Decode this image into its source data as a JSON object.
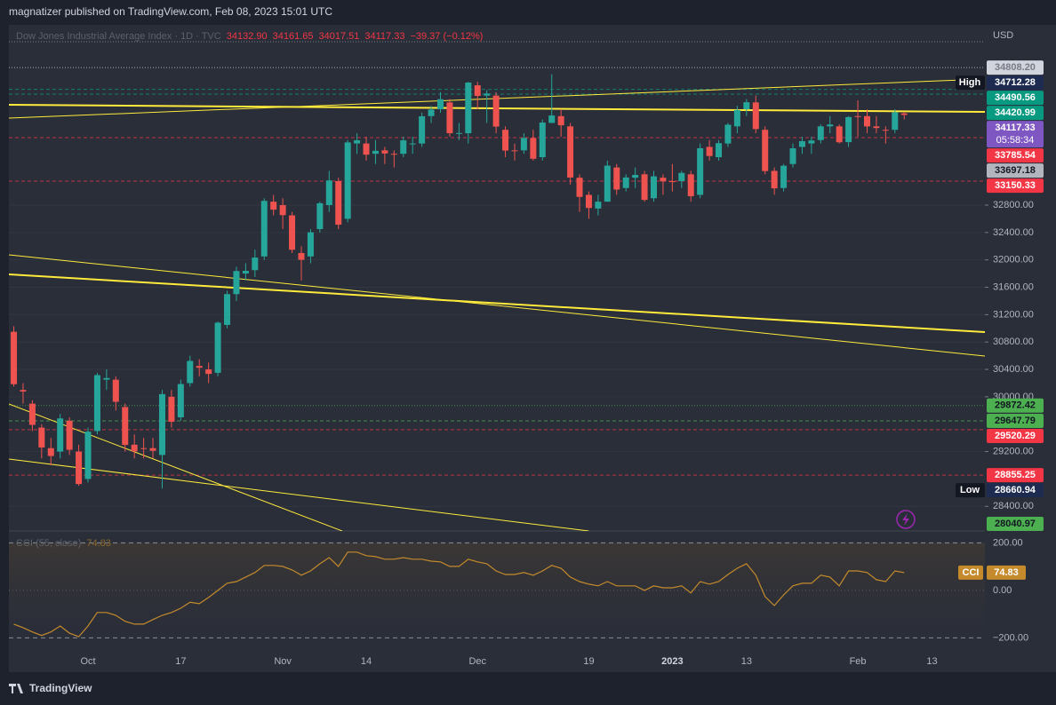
{
  "header": {
    "title": "magnatizer published on TradingView.com, Feb 08, 2023 15:01 UTC"
  },
  "footer": {
    "brand": "TradingView"
  },
  "chart_data": {
    "type": "candlestick",
    "legend": {
      "name": "Dow Jones Industrial Average Index · 1D · TVC",
      "values": [
        "34132.90",
        "34161.65",
        "34017.51",
        "34117.33",
        "−39.37 (−0.12%)"
      ]
    },
    "currency": "USD",
    "categories": [
      null,
      null,
      null,
      null,
      null,
      null,
      null,
      null,
      "Oct",
      null,
      null,
      null,
      null,
      null,
      null,
      null,
      null,
      null,
      "17",
      null,
      null,
      null,
      null,
      null,
      null,
      null,
      null,
      null,
      null,
      "Nov",
      null,
      null,
      null,
      null,
      null,
      null,
      null,
      null,
      "14",
      null,
      null,
      null,
      null,
      null,
      null,
      null,
      null,
      null,
      null,
      null,
      "Dec",
      null,
      null,
      null,
      null,
      null,
      null,
      null,
      null,
      null,
      null,
      null,
      "19",
      null,
      null,
      null,
      null,
      null,
      null,
      null,
      null,
      "2023",
      null,
      null,
      null,
      null,
      null,
      null,
      null,
      "13",
      null,
      null,
      null,
      null,
      null,
      null,
      null,
      null,
      null,
      null,
      null,
      "Feb",
      null,
      null,
      null,
      null,
      null,
      null,
      null,
      "13"
    ],
    "open": [
      30950,
      30100,
      29900,
      29550,
      29250,
      29200,
      29650,
      29200,
      28800,
      29500,
      30250,
      30250,
      29850,
      29300,
      29250,
      29250,
      29150,
      30000,
      29700,
      30200,
      30450,
      30400,
      30350,
      31050,
      31500,
      31800,
      31850,
      32050,
      32850,
      32800,
      32650,
      32100,
      32050,
      32450,
      32800,
      33150,
      32600,
      33700,
      33700,
      33550,
      33600,
      33550,
      33550,
      33700,
      33700,
      34100,
      34200,
      34300,
      33850,
      33850,
      34550,
      34400,
      34400,
      33900,
      33600,
      33600,
      33780,
      33500,
      34000,
      34100,
      33950,
      33200,
      32950,
      32750,
      32850,
      33350,
      33050,
      33200,
      33250,
      32900,
      33200,
      33150,
      33150,
      33250,
      32950,
      33650,
      33500,
      33700,
      33950,
      34200,
      34300,
      33900,
      33300,
      33050,
      33400,
      33650,
      33700,
      33750,
      33950,
      33950,
      33720,
      34100,
      34100,
      33950,
      33900,
      33900,
      34140,
      null,
      null,
      null
    ],
    "high": [
      31030,
      30200,
      29950,
      29600,
      29400,
      29750,
      29700,
      29300,
      29550,
      30350,
      30400,
      30300,
      29900,
      29450,
      29400,
      29400,
      30100,
      30100,
      30250,
      30600,
      30550,
      30500,
      31100,
      31550,
      31900,
      31950,
      32150,
      32900,
      32950,
      32900,
      32700,
      32200,
      32450,
      32850,
      33300,
      33200,
      33750,
      33850,
      33800,
      33750,
      33650,
      33600,
      33800,
      33800,
      34150,
      34250,
      34450,
      34350,
      34000,
      34600,
      34600,
      34480,
      34450,
      33950,
      33700,
      33850,
      33900,
      34050,
      34712.28,
      34200,
      34000,
      33250,
      33000,
      32950,
      33450,
      33400,
      33250,
      33350,
      33300,
      33300,
      33250,
      33400,
      33300,
      33300,
      33700,
      33750,
      33750,
      34000,
      34250,
      34350,
      34400,
      33950,
      33350,
      33400,
      33700,
      33800,
      33800,
      33980,
      34100,
      33980,
      34100,
      34330,
      34200,
      34100,
      33950,
      34200,
      34160,
      null,
      null,
      null
    ],
    "low": [
      30150,
      29900,
      29500,
      29100,
      29000,
      29100,
      29150,
      28700,
      28750,
      29450,
      30100,
      29800,
      29200,
      29100,
      29100,
      29100,
      28660.94,
      29550,
      29650,
      30150,
      30300,
      30200,
      30300,
      31000,
      31400,
      31700,
      31750,
      32000,
      32650,
      32450,
      32100,
      31700,
      31950,
      32400,
      32700,
      32450,
      32550,
      33550,
      33450,
      33400,
      33400,
      33350,
      33500,
      33550,
      33650,
      34000,
      34150,
      33800,
      33750,
      33700,
      34200,
      34000,
      33850,
      33500,
      33450,
      33550,
      33450,
      33450,
      34000,
      33800,
      33100,
      32700,
      32600,
      32650,
      32850,
      32950,
      33000,
      33050,
      32850,
      32850,
      32950,
      33000,
      33050,
      32850,
      32900,
      33450,
      33450,
      33650,
      33850,
      34100,
      33850,
      33250,
      32950,
      33000,
      33350,
      33550,
      33550,
      33700,
      33850,
      33700,
      33650,
      33800,
      33850,
      33850,
      33700,
      33850,
      34050,
      null,
      null,
      null
    ],
    "close": [
      30184,
      30077,
      29590,
      29260,
      29135,
      29684,
      29226,
      28726,
      29491,
      30317,
      30274,
      29927,
      29297,
      29203,
      29240,
      29211,
      30039,
      29635,
      30186,
      30524,
      30424,
      30334,
      31083,
      31500,
      31837,
      31840,
      32034,
      32862,
      32733,
      32654,
      32148,
      32001,
      32403,
      32827,
      33161,
      32514,
      33716,
      33748,
      33537,
      33593,
      33554,
      33546,
      33746,
      33700,
      34098,
      34195,
      34347,
      33850,
      33853,
      34590,
      34395,
      34430,
      33947,
      33597,
      33598,
      33781,
      33477,
      34006,
      34109,
      33966,
      33203,
      32920,
      32758,
      32850,
      33377,
      33027,
      33204,
      33241,
      32876,
      33220,
      33147,
      33136,
      33270,
      32930,
      33631,
      33517,
      33705,
      33974,
      34190,
      34303,
      33911,
      33297,
      33045,
      33375,
      33630,
      33734,
      33744,
      33950,
      33978,
      33718,
      34086,
      34092,
      33949,
      33926,
      33891,
      34156,
      34117.33,
      null,
      null,
      null
    ],
    "up_color": "#26a69a",
    "down_color": "#ef5350",
    "xlim": [
      -0.53,
      104.7
    ],
    "ylim": [
      28040,
      35433
    ],
    "yticks": [
      {
        "value": 28400,
        "label": "28400.00"
      },
      {
        "value": 29200,
        "label": "29200.00"
      },
      {
        "value": 30000,
        "label": "30000.00"
      },
      {
        "value": 30400,
        "label": "30400.00"
      },
      {
        "value": 30800,
        "label": "30800.00"
      },
      {
        "value": 31200,
        "label": "31200.00"
      },
      {
        "value": 31600,
        "label": "31600.00"
      },
      {
        "value": 32000,
        "label": "32000.00"
      },
      {
        "value": 32400,
        "label": "32400.00"
      },
      {
        "value": 32800,
        "label": "32800.00"
      }
    ],
    "grid": true,
    "levels": [
      {
        "value": 34808.2,
        "label": "34808.20",
        "color": "#d1d4dc",
        "text_color": "#787b86",
        "line": "dotted"
      },
      {
        "value": 34712.28,
        "label": "34712.28",
        "tag": "High",
        "color": "#1c2b4f",
        "text_color": "#ffffff"
      },
      {
        "value": 34490.56,
        "label": "34490.56",
        "color": "#089981",
        "text_color": "#ffffff",
        "line": "dashed"
      },
      {
        "value": 34420.99,
        "label": "34420.99",
        "color": "#089981",
        "text_color": "#ffffff",
        "line": "dashed"
      },
      {
        "value": 34117.33,
        "label": "34117.33",
        "sub": "05:58:34",
        "color": "#7e57c2",
        "text_color": "#ffffff"
      },
      {
        "value": 33785.54,
        "label": "33785.54",
        "color": "#f23645",
        "text_color": "#ffffff",
        "line": "dashed"
      },
      {
        "value": 33697.18,
        "label": "33697.18",
        "color": "#b2b5be",
        "text_color": "#131722"
      },
      {
        "value": 33150.33,
        "label": "33150.33",
        "color": "#f23645",
        "text_color": "#ffffff",
        "line": "dashed"
      },
      {
        "value": 29872.42,
        "label": "29872.42",
        "color": "#4caf50",
        "text_color": "#131722",
        "line": "dotted"
      },
      {
        "value": 29647.79,
        "label": "29647.79",
        "color": "#4caf50",
        "text_color": "#131722",
        "line": "dashed"
      },
      {
        "value": 29520.29,
        "label": "29520.29",
        "color": "#f23645",
        "text_color": "#ffffff",
        "line": "dashed"
      },
      {
        "value": 28855.25,
        "label": "28855.25",
        "color": "#f23645",
        "text_color": "#ffffff",
        "line": "dashed"
      },
      {
        "value": 28660.94,
        "label": "28660.94",
        "tag": "Low",
        "color": "#1c2b4f",
        "text_color": "#ffffff"
      },
      {
        "value": 28040.97,
        "label": "28040.97",
        "color": "#4caf50",
        "text_color": "#131722"
      }
    ],
    "trendlines": [
      {
        "x": [
          -0.53,
          104.7
        ],
        "y": [
          34265,
          34162
        ],
        "width": 2
      },
      {
        "x": [
          -0.53,
          104.7
        ],
        "y": [
          34071,
          34642
        ],
        "width": 1
      },
      {
        "x": [
          -0.53,
          104.7
        ],
        "y": [
          31788,
          30945
        ],
        "width": 2
      },
      {
        "x": [
          -0.53,
          104.7
        ],
        "y": [
          32074,
          30595
        ],
        "width": 1
      },
      {
        "x": [
          -0.53,
          35.4
        ],
        "y": [
          29895,
          28040
        ],
        "width": 1
      },
      {
        "x": [
          -0.53,
          62
        ],
        "y": [
          29090,
          28040
        ],
        "width": 1
      }
    ],
    "trend_color": "#ffeb3b",
    "cci": {
      "name": "CCI (55, close)",
      "tag": "CCI",
      "color": "#c48a2c",
      "values": [
        -142,
        -157,
        -175,
        -190,
        -175,
        -150,
        -180,
        -195,
        -150,
        -93,
        -93,
        -105,
        -130,
        -142,
        -142,
        -123,
        -105,
        -93,
        -75,
        -50,
        -56,
        -30,
        0,
        30,
        37,
        56,
        75,
        105,
        105,
        101,
        86,
        64,
        82,
        112,
        138,
        101,
        161,
        161,
        146,
        142,
        131,
        131,
        138,
        131,
        131,
        123,
        120,
        101,
        101,
        131,
        120,
        112,
        82,
        67,
        67,
        75,
        64,
        82,
        105,
        93,
        56,
        37,
        26,
        19,
        37,
        19,
        19,
        19,
        0,
        19,
        11,
        11,
        19,
        -11,
        37,
        26,
        37,
        67,
        93,
        112,
        64,
        -26,
        -64,
        -19,
        19,
        30,
        30,
        64,
        56,
        19,
        82,
        82,
        75,
        45,
        37,
        82,
        74.83,
        null,
        null,
        null
      ],
      "ylim": [
        -262,
        250
      ],
      "yticks": [
        {
          "value": 200,
          "label": "200.00"
        },
        {
          "value": 0,
          "label": "0.00"
        },
        {
          "value": -200,
          "label": "−200.00"
        }
      ]
    }
  }
}
